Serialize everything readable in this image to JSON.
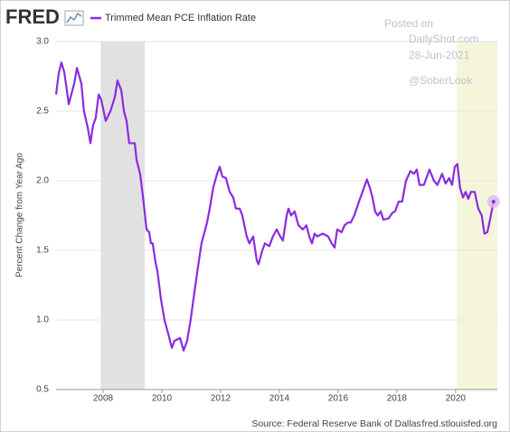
{
  "chart_data": {
    "type": "line",
    "logo": "FRED",
    "ylabel": "Percent Change from Year Ago",
    "source": "Source: Federal Reserve Bank of Dallas",
    "site": "fred.stlouisfed.org",
    "watermark": [
      "Posted on",
      "DailyShot.com",
      "28-Jun-2021",
      "@SoberLook"
    ],
    "xlim": [
      2006.4,
      2021.42
    ],
    "xticks": [
      2008,
      2010,
      2012,
      2014,
      2016,
      2018,
      2020
    ],
    "ylim": [
      0.5,
      3.0
    ],
    "yticks": [
      {
        "value": 0.5,
        "label": "0.5"
      },
      {
        "value": 1.0,
        "label": "1.0"
      },
      {
        "value": 1.5,
        "label": "1.5"
      },
      {
        "value": 2.0,
        "label": "2.0"
      },
      {
        "value": 2.5,
        "label": "2.5"
      },
      {
        "value": 3.0,
        "label": "3.0"
      }
    ],
    "grid": true,
    "shading": [
      {
        "start": 2007.92,
        "end": 2009.42,
        "color": "#e1e1e1"
      },
      {
        "start": 2020.03,
        "end": 2021.42,
        "color": "#f5f5dc"
      }
    ],
    "x": [
      2006.4,
      2006.49,
      2006.58,
      2006.68,
      2006.8,
      2006.83,
      2007.02,
      2007.11,
      2007.26,
      2007.35,
      2007.48,
      2007.57,
      2007.66,
      2007.75,
      2007.85,
      2007.94,
      2008.09,
      2008.25,
      2008.4,
      2008.49,
      2008.62,
      2008.71,
      2008.8,
      2008.89,
      2009.08,
      2009.14,
      2009.26,
      2009.35,
      2009.48,
      2009.57,
      2009.63,
      2009.69,
      2009.78,
      2009.85,
      2009.97,
      2010.09,
      2010.22,
      2010.34,
      2010.43,
      2010.62,
      2010.74,
      2010.86,
      2010.98,
      2011.11,
      2011.23,
      2011.35,
      2011.54,
      2011.63,
      2011.75,
      2011.88,
      2011.97,
      2012.06,
      2012.18,
      2012.31,
      2012.43,
      2012.52,
      2012.65,
      2012.74,
      2012.89,
      2012.98,
      2013.11,
      2013.23,
      2013.29,
      2013.42,
      2013.51,
      2013.66,
      2013.78,
      2013.91,
      2014.03,
      2014.12,
      2014.25,
      2014.31,
      2014.4,
      2014.52,
      2014.65,
      2014.8,
      2014.92,
      2015.02,
      2015.11,
      2015.2,
      2015.29,
      2015.48,
      2015.66,
      2015.78,
      2015.88,
      2015.97,
      2016.12,
      2016.22,
      2016.34,
      2016.43,
      2016.55,
      2016.71,
      2016.83,
      2016.98,
      2017.08,
      2017.17,
      2017.26,
      2017.35,
      2017.45,
      2017.54,
      2017.72,
      2017.85,
      2017.94,
      2018.06,
      2018.18,
      2018.31,
      2018.46,
      2018.58,
      2018.68,
      2018.77,
      2018.92,
      2019.11,
      2019.26,
      2019.38,
      2019.54,
      2019.66,
      2019.78,
      2019.88,
      2019.97,
      2020.06,
      2020.15,
      2020.25,
      2020.34,
      2020.43,
      2020.52,
      2020.65,
      2020.77,
      2020.89,
      2020.98,
      2021.08,
      2021.17,
      2021.29
    ],
    "series": [
      {
        "name": "Trimmed Mean PCE Inflation Rate",
        "color": "#8a2be2",
        "values": [
          2.62,
          2.77,
          2.85,
          2.78,
          2.6,
          2.55,
          2.7,
          2.81,
          2.7,
          2.5,
          2.38,
          2.27,
          2.4,
          2.45,
          2.62,
          2.58,
          2.43,
          2.5,
          2.6,
          2.72,
          2.65,
          2.5,
          2.43,
          2.27,
          2.27,
          2.15,
          2.05,
          1.9,
          1.65,
          1.63,
          1.55,
          1.55,
          1.42,
          1.35,
          1.15,
          1.0,
          0.9,
          0.8,
          0.85,
          0.87,
          0.78,
          0.85,
          1.0,
          1.2,
          1.38,
          1.55,
          1.7,
          1.8,
          1.95,
          2.05,
          2.1,
          2.03,
          2.02,
          1.92,
          1.88,
          1.8,
          1.8,
          1.75,
          1.6,
          1.55,
          1.6,
          1.43,
          1.4,
          1.5,
          1.55,
          1.53,
          1.6,
          1.65,
          1.6,
          1.57,
          1.75,
          1.8,
          1.75,
          1.78,
          1.68,
          1.65,
          1.68,
          1.6,
          1.55,
          1.62,
          1.6,
          1.62,
          1.6,
          1.55,
          1.52,
          1.65,
          1.63,
          1.68,
          1.7,
          1.7,
          1.75,
          1.85,
          1.92,
          2.01,
          1.95,
          1.88,
          1.78,
          1.75,
          1.78,
          1.72,
          1.73,
          1.77,
          1.78,
          1.85,
          1.85,
          2.0,
          2.07,
          2.05,
          2.08,
          1.97,
          1.97,
          2.08,
          2.0,
          1.97,
          2.05,
          1.98,
          2.02,
          1.97,
          2.1,
          2.12,
          1.95,
          1.88,
          1.92,
          1.87,
          1.92,
          1.92,
          1.8,
          1.75,
          1.62,
          1.63,
          1.72,
          1.85
        ]
      }
    ]
  }
}
